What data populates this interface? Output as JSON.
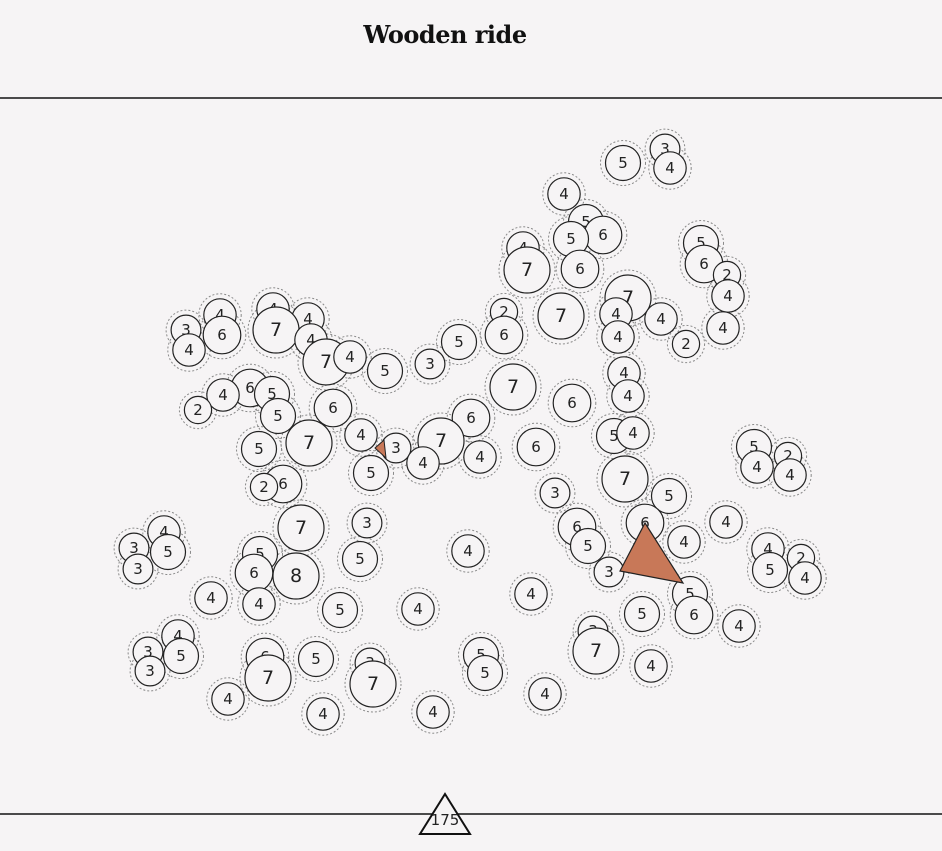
{
  "header": {
    "title": "Wooden ride"
  },
  "circles": [
    3,
    5,
    4,
    4,
    5,
    6,
    5,
    4,
    5,
    6,
    2,
    4,
    6,
    7,
    7,
    4,
    4,
    7,
    2,
    6,
    4,
    2,
    4,
    5,
    3,
    4,
    4,
    4,
    3,
    6,
    4,
    7,
    4,
    7,
    4,
    5,
    7,
    4,
    4,
    6,
    5,
    4,
    2,
    5,
    6,
    6,
    6,
    5,
    4,
    4,
    7,
    5,
    3,
    7,
    4,
    6,
    4,
    5,
    5,
    2,
    4,
    4,
    7,
    6,
    2,
    3,
    5,
    6,
    4,
    4,
    6,
    5,
    3,
    7,
    3,
    4,
    3,
    5,
    3,
    5,
    5,
    4,
    6,
    8,
    4,
    2,
    5,
    4,
    4,
    4,
    5,
    4,
    4,
    5,
    6,
    5,
    4,
    4,
    3,
    5,
    3,
    6,
    7,
    5,
    3,
    7,
    5,
    5,
    3,
    7,
    4,
    4,
    4,
    4,
    4
  ],
  "score": "175"
}
